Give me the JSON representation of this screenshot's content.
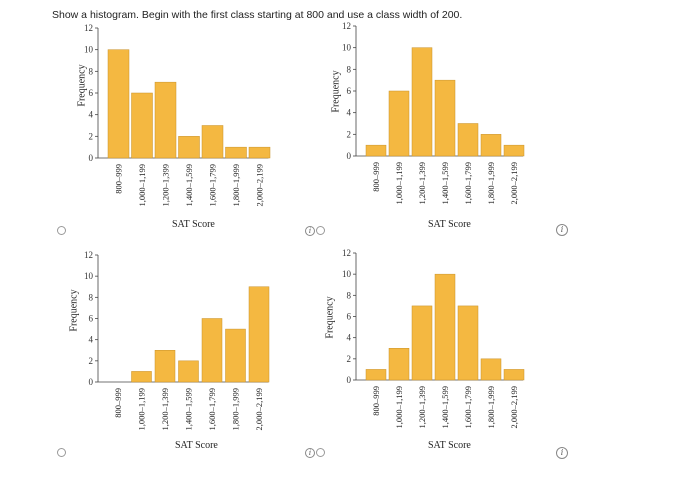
{
  "question": "Show a histogram. Begin with the first class starting at 800 and use a class width of 200.",
  "options": [
    {
      "id": "a"
    },
    {
      "id": "b"
    },
    {
      "id": "c"
    },
    {
      "id": "d"
    }
  ],
  "info_glyph": "i",
  "colors": {
    "bar": "#f4b841",
    "bar_stroke": "#c8922a",
    "axis": "#444"
  },
  "chart_data": [
    {
      "type": "bar",
      "categories": [
        "800–999",
        "1,000–1,199",
        "1,200–1,399",
        "1,400–1,599",
        "1,600–1,799",
        "1,800–1,999",
        "2,000–2,199"
      ],
      "values": [
        10,
        6,
        7,
        2,
        3,
        1,
        1
      ],
      "xlabel": "SAT Score",
      "ylabel": "Frequency",
      "yticks": [
        0,
        2,
        4,
        6,
        8,
        10,
        12
      ],
      "ylim": [
        0,
        12
      ]
    },
    {
      "type": "bar",
      "categories": [
        "800–999",
        "1,000–1,199",
        "1,200–1,399",
        "1,400–1,599",
        "1,600–1,799",
        "1,800–1,999",
        "2,000–2,199"
      ],
      "values": [
        1,
        6,
        10,
        7,
        3,
        2,
        1
      ],
      "xlabel": "SAT Score",
      "ylabel": "Frequency",
      "yticks": [
        0,
        2,
        4,
        6,
        8,
        10,
        12
      ],
      "ylim": [
        0,
        12
      ]
    },
    {
      "type": "bar",
      "categories": [
        "800–999",
        "1,000–1,199",
        "1,200–1,399",
        "1,400–1,599",
        "1,600–1,799",
        "1,800–1,999",
        "2,000–2,199"
      ],
      "values": [
        0,
        1,
        3,
        2,
        6,
        5,
        9
      ],
      "xlabel": "SAT Score",
      "ylabel": "Frequency",
      "yticks": [
        0,
        2,
        4,
        6,
        8,
        10,
        12
      ],
      "ylim": [
        0,
        12
      ]
    },
    {
      "type": "bar",
      "categories": [
        "800–999",
        "1,000–1,199",
        "1,200–1,399",
        "1,400–1,599",
        "1,600–1,799",
        "1,800–1,999",
        "2,000–2,199"
      ],
      "values": [
        1,
        3,
        7,
        10,
        7,
        2,
        1
      ],
      "xlabel": "SAT Score",
      "ylabel": "Frequency",
      "yticks": [
        0,
        2,
        4,
        6,
        8,
        10,
        12
      ],
      "ylim": [
        0,
        12
      ]
    }
  ]
}
